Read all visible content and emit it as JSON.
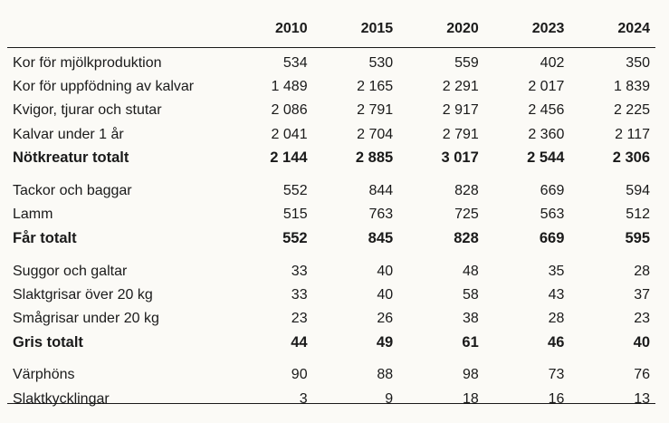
{
  "years": [
    "2010",
    "2015",
    "2020",
    "2023",
    "2024"
  ],
  "groups": [
    {
      "rows": [
        {
          "label": "Kor för mjölkproduktion",
          "values": [
            "534",
            "530",
            "559",
            "402",
            "350"
          ],
          "total": false
        },
        {
          "label": "Kor för uppfödning av kalvar",
          "values": [
            "1 489",
            "2 165",
            "2 291",
            "2 017",
            "1 839"
          ],
          "total": false
        },
        {
          "label": "Kvigor, tjurar och stutar",
          "values": [
            "2 086",
            "2 791",
            "2 917",
            "2 456",
            "2 225"
          ],
          "total": false
        },
        {
          "label": "Kalvar under 1 år",
          "values": [
            "2 041",
            "2 704",
            "2 791",
            "2 360",
            "2 117"
          ],
          "total": false
        },
        {
          "label": "Nötkreatur totalt",
          "values": [
            "2 144",
            "2 885",
            "3 017",
            "2 544",
            "2 306"
          ],
          "total": true
        }
      ]
    },
    {
      "rows": [
        {
          "label": "Tackor och baggar",
          "values": [
            "552",
            "844",
            "828",
            "669",
            "594"
          ],
          "total": false
        },
        {
          "label": "Lamm",
          "values": [
            "515",
            "763",
            "725",
            "563",
            "512"
          ],
          "total": false
        },
        {
          "label": "Får totalt",
          "values": [
            "552",
            "845",
            "828",
            "669",
            "595"
          ],
          "total": true
        }
      ]
    },
    {
      "rows": [
        {
          "label": "Suggor och galtar",
          "values": [
            "33",
            "40",
            "48",
            "35",
            "28"
          ],
          "total": false
        },
        {
          "label": "Slaktgrisar över 20 kg",
          "values": [
            "33",
            "40",
            "58",
            "43",
            "37"
          ],
          "total": false
        },
        {
          "label": "Smågrisar under 20 kg",
          "values": [
            "23",
            "26",
            "38",
            "28",
            "23"
          ],
          "total": false
        },
        {
          "label": "Gris totalt",
          "values": [
            "44",
            "49",
            "61",
            "46",
            "40"
          ],
          "total": true
        }
      ]
    },
    {
      "rows": [
        {
          "label": "Värphöns",
          "values": [
            "90",
            "88",
            "98",
            "73",
            "76"
          ],
          "total": false
        },
        {
          "label": "Slaktkycklingar",
          "values": [
            "3",
            "9",
            "18",
            "16",
            "13"
          ],
          "total": false
        }
      ]
    }
  ]
}
